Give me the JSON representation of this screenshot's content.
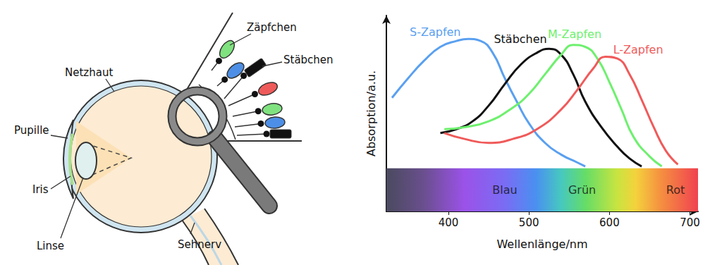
{
  "diagram": {
    "labels": {
      "cones": "Zäpfchen",
      "rods": "Stäbchen",
      "retina": "Netzhaut",
      "pupil": "Pupille",
      "iris": "Iris",
      "lens": "Linse",
      "nerve": "Sehnerv"
    }
  },
  "chart_data": {
    "type": "line",
    "x_label": "Wellenlänge/nm",
    "y_label": "Absorption/a.u.",
    "xlim": [
      323,
      710
    ],
    "xticks": [
      400,
      500,
      600,
      700
    ],
    "ylim": [
      0,
      1
    ],
    "tick_labels": "x",
    "grid": false,
    "series": [
      {
        "name": "S-Zapfen",
        "color": "#5aa0f0",
        "x": [
          330,
          350,
          370,
          390,
          410,
          425,
          440,
          455,
          470,
          485,
          500,
          520,
          540,
          560,
          570
        ],
        "values": [
          0.58,
          0.68,
          0.77,
          0.84,
          0.87,
          0.88,
          0.87,
          0.81,
          0.68,
          0.56,
          0.45,
          0.35,
          0.29,
          0.25,
          0.23
        ]
      },
      {
        "name": "Stäbchen",
        "color": "#111111",
        "x": [
          390,
          410,
          430,
          450,
          470,
          490,
          510,
          525,
          540,
          555,
          570,
          590,
          610,
          625,
          640
        ],
        "values": [
          0.4,
          0.42,
          0.46,
          0.54,
          0.65,
          0.75,
          0.81,
          0.83,
          0.8,
          0.7,
          0.56,
          0.43,
          0.33,
          0.27,
          0.23
        ]
      },
      {
        "name": "M-Zapfen",
        "color": "#6ef06e",
        "x": [
          395,
          420,
          450,
          480,
          500,
          520,
          540,
          555,
          570,
          585,
          600,
          615,
          630,
          650,
          665
        ],
        "values": [
          0.42,
          0.43,
          0.46,
          0.53,
          0.6,
          0.7,
          0.8,
          0.85,
          0.84,
          0.78,
          0.66,
          0.52,
          0.38,
          0.28,
          0.23
        ]
      },
      {
        "name": "L-Zapfen",
        "color": "#f05a5a",
        "x": [
          395,
          420,
          450,
          480,
          510,
          540,
          560,
          580,
          595,
          610,
          625,
          640,
          655,
          670,
          685
        ],
        "values": [
          0.4,
          0.37,
          0.35,
          0.37,
          0.42,
          0.52,
          0.62,
          0.73,
          0.79,
          0.78,
          0.7,
          0.57,
          0.43,
          0.31,
          0.24
        ]
      }
    ],
    "band_labels": [
      {
        "text": "Blau",
        "x": 470
      },
      {
        "text": "Grün",
        "x": 566
      },
      {
        "text": "Rot",
        "x": 682
      }
    ]
  }
}
